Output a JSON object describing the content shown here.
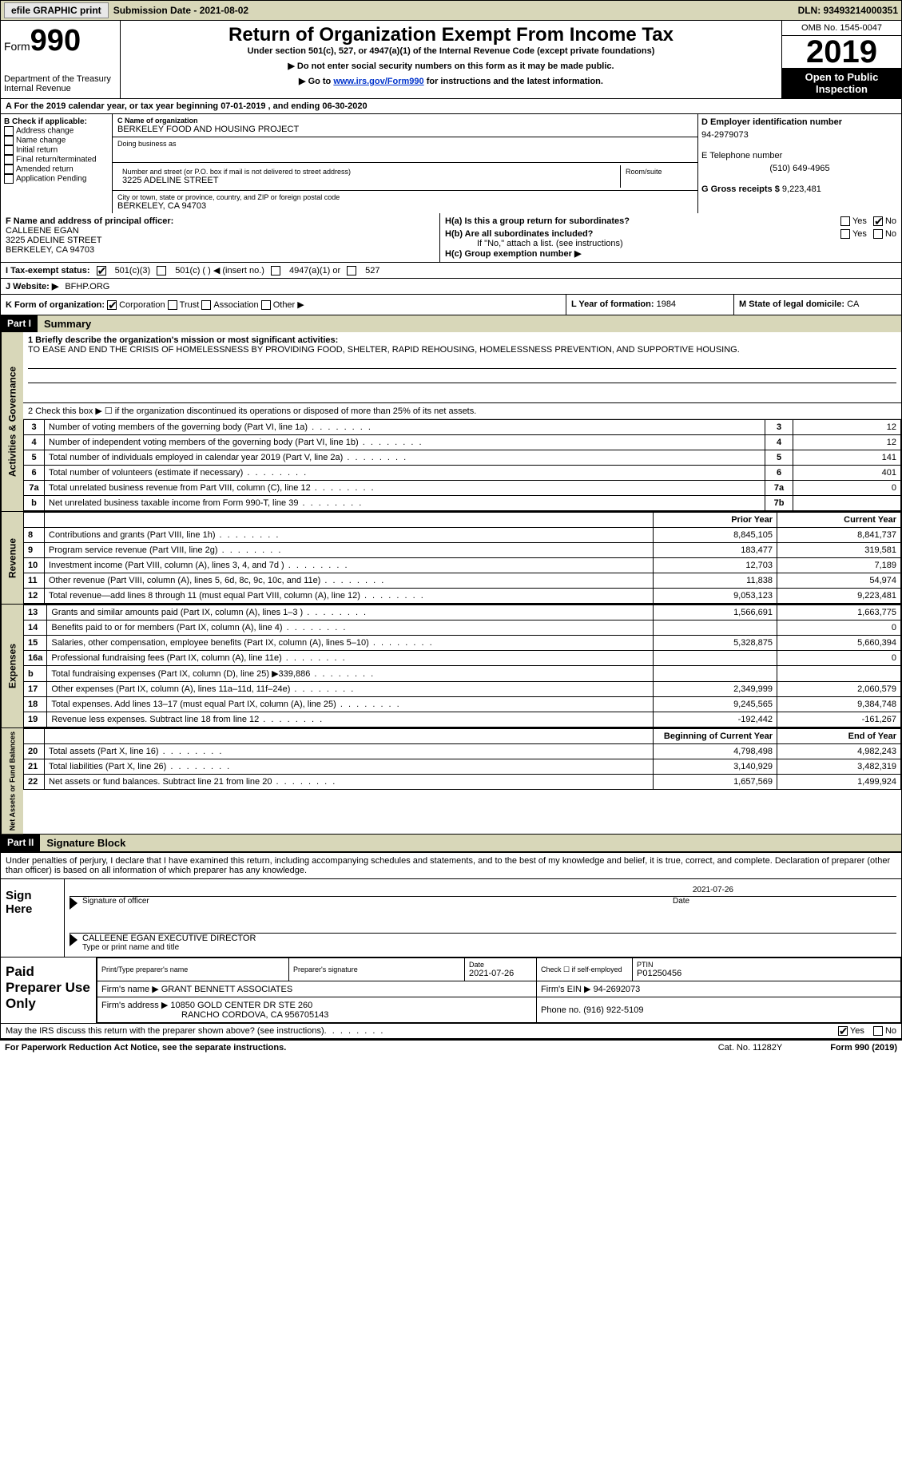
{
  "topbar": {
    "efile": "efile GRAPHIC print",
    "submission": "Submission Date - 2021-08-02",
    "dln": "DLN: 93493214000351"
  },
  "header": {
    "form_word": "Form",
    "form_num": "990",
    "dept": "Department of the Treasury",
    "irs": "Internal Revenue",
    "title": "Return of Organization Exempt From Income Tax",
    "subtitle": "Under section 501(c), 527, or 4947(a)(1) of the Internal Revenue Code (except private foundations)",
    "note1": "▶ Do not enter social security numbers on this form as it may be made public.",
    "note2_pre": "▶ Go to ",
    "note2_link": "www.irs.gov/Form990",
    "note2_post": " for instructions and the latest information.",
    "omb": "OMB No. 1545-0047",
    "year": "2019",
    "open": "Open to Public Inspection"
  },
  "period": "A For the 2019 calendar year, or tax year beginning 07-01-2019   , and ending 06-30-2020",
  "boxB": {
    "title": "B Check if applicable:",
    "items": [
      "Address change",
      "Name change",
      "Initial return",
      "Final return/terminated",
      "Amended return",
      "Application Pending"
    ]
  },
  "boxC": {
    "name_label": "C Name of organization",
    "name": "BERKELEY FOOD AND HOUSING PROJECT",
    "dba_label": "Doing business as",
    "addr_label": "Number and street (or P.O. box if mail is not delivered to street address)",
    "room_label": "Room/suite",
    "addr": "3225 ADELINE STREET",
    "city_label": "City or town, state or province, country, and ZIP or foreign postal code",
    "city": "BERKELEY, CA  94703"
  },
  "boxD": {
    "ein_label": "D Employer identification number",
    "ein": "94-2979073",
    "tel_label": "E Telephone number",
    "tel": "(510) 649-4965",
    "gross_label": "G Gross receipts $",
    "gross": "9,223,481"
  },
  "boxF": {
    "label": "F  Name and address of principal officer:",
    "name": "CALLEENE EGAN",
    "addr1": "3225 ADELINE STREET",
    "addr2": "BERKELEY, CA  94703"
  },
  "boxH": {
    "ha": "H(a)  Is this a group return for subordinates?",
    "hb": "H(b)  Are all subordinates included?",
    "hb_note": "If \"No,\" attach a list. (see instructions)",
    "hc": "H(c)  Group exemption number ▶",
    "yes": "Yes",
    "no": "No"
  },
  "boxI": {
    "label": "I  Tax-exempt status:",
    "o1": "501(c)(3)",
    "o2": "501(c) (  ) ◀ (insert no.)",
    "o3": "4947(a)(1) or",
    "o4": "527"
  },
  "boxJ": {
    "label": "J  Website: ▶",
    "val": "BFHP.ORG"
  },
  "boxK": {
    "label": "K Form of organization:",
    "o1": "Corporation",
    "o2": "Trust",
    "o3": "Association",
    "o4": "Other ▶"
  },
  "boxL": {
    "label": "L Year of formation:",
    "val": "1984"
  },
  "boxM": {
    "label": "M State of legal domicile:",
    "val": "CA"
  },
  "partI": {
    "hdr": "Part I",
    "title": "Summary",
    "q1_label": "1  Briefly describe the organization's mission or most significant activities:",
    "q1_text": "TO EASE AND END THE CRISIS OF HOMELESSNESS BY PROVIDING FOOD, SHELTER, RAPID REHOUSING, HOMELESSNESS PREVENTION, AND SUPPORTIVE HOUSING.",
    "q2": "2   Check this box ▶ ☐  if the organization discontinued its operations or disposed of more than 25% of its net assets.",
    "side_ag": "Activities & Governance",
    "rows_gov": [
      {
        "n": "3",
        "d": "Number of voting members of the governing body (Part VI, line 1a)",
        "b": "3",
        "v": "12"
      },
      {
        "n": "4",
        "d": "Number of independent voting members of the governing body (Part VI, line 1b)",
        "b": "4",
        "v": "12"
      },
      {
        "n": "5",
        "d": "Total number of individuals employed in calendar year 2019 (Part V, line 2a)",
        "b": "5",
        "v": "141"
      },
      {
        "n": "6",
        "d": "Total number of volunteers (estimate if necessary)",
        "b": "6",
        "v": "401"
      },
      {
        "n": "7a",
        "d": "Total unrelated business revenue from Part VIII, column (C), line 12",
        "b": "7a",
        "v": "0"
      },
      {
        "n": "b",
        "d": "Net unrelated business taxable income from Form 990-T, line 39",
        "b": "7b",
        "v": ""
      }
    ],
    "prior_hdr": "Prior Year",
    "curr_hdr": "Current Year",
    "side_rev": "Revenue",
    "rows_rev": [
      {
        "n": "8",
        "d": "Contributions and grants (Part VIII, line 1h)",
        "p": "8,845,105",
        "c": "8,841,737"
      },
      {
        "n": "9",
        "d": "Program service revenue (Part VIII, line 2g)",
        "p": "183,477",
        "c": "319,581"
      },
      {
        "n": "10",
        "d": "Investment income (Part VIII, column (A), lines 3, 4, and 7d )",
        "p": "12,703",
        "c": "7,189"
      },
      {
        "n": "11",
        "d": "Other revenue (Part VIII, column (A), lines 5, 6d, 8c, 9c, 10c, and 11e)",
        "p": "11,838",
        "c": "54,974"
      },
      {
        "n": "12",
        "d": "Total revenue—add lines 8 through 11 (must equal Part VIII, column (A), line 12)",
        "p": "9,053,123",
        "c": "9,223,481"
      }
    ],
    "side_exp": "Expenses",
    "rows_exp": [
      {
        "n": "13",
        "d": "Grants and similar amounts paid (Part IX, column (A), lines 1–3 )",
        "p": "1,566,691",
        "c": "1,663,775"
      },
      {
        "n": "14",
        "d": "Benefits paid to or for members (Part IX, column (A), line 4)",
        "p": "",
        "c": "0"
      },
      {
        "n": "15",
        "d": "Salaries, other compensation, employee benefits (Part IX, column (A), lines 5–10)",
        "p": "5,328,875",
        "c": "5,660,394"
      },
      {
        "n": "16a",
        "d": "Professional fundraising fees (Part IX, column (A), line 11e)",
        "p": "",
        "c": "0"
      },
      {
        "n": "b",
        "d": "Total fundraising expenses (Part IX, column (D), line 25) ▶339,886",
        "p": "shade",
        "c": "shade"
      },
      {
        "n": "17",
        "d": "Other expenses (Part IX, column (A), lines 11a–11d, 11f–24e)",
        "p": "2,349,999",
        "c": "2,060,579"
      },
      {
        "n": "18",
        "d": "Total expenses. Add lines 13–17 (must equal Part IX, column (A), line 25)",
        "p": "9,245,565",
        "c": "9,384,748"
      },
      {
        "n": "19",
        "d": "Revenue less expenses. Subtract line 18 from line 12",
        "p": "-192,442",
        "c": "-161,267"
      }
    ],
    "beg_hdr": "Beginning of Current Year",
    "end_hdr": "End of Year",
    "side_na": "Net Assets or Fund Balances",
    "rows_na": [
      {
        "n": "20",
        "d": "Total assets (Part X, line 16)",
        "p": "4,798,498",
        "c": "4,982,243"
      },
      {
        "n": "21",
        "d": "Total liabilities (Part X, line 26)",
        "p": "3,140,929",
        "c": "3,482,319"
      },
      {
        "n": "22",
        "d": "Net assets or fund balances. Subtract line 21 from line 20",
        "p": "1,657,569",
        "c": "1,499,924"
      }
    ]
  },
  "partII": {
    "hdr": "Part II",
    "title": "Signature Block",
    "penalties": "Under penalties of perjury, I declare that I have examined this return, including accompanying schedules and statements, and to the best of my knowledge and belief, it is true, correct, and complete. Declaration of preparer (other than officer) is based on all information of which preparer has any knowledge.",
    "sign_here": "Sign Here",
    "sig_officer": "Signature of officer",
    "date": "Date",
    "sig_date": "2021-07-26",
    "officer_name": "CALLEENE EGAN  EXECUTIVE DIRECTOR",
    "type_name": "Type or print name and title",
    "paid_prep": "Paid Preparer Use Only",
    "prep_name_lbl": "Print/Type preparer's name",
    "prep_sig_lbl": "Preparer's signature",
    "prep_date_lbl": "Date",
    "prep_date": "2021-07-26",
    "check_self": "Check ☐ if self-employed",
    "ptin_lbl": "PTIN",
    "ptin": "P01250456",
    "firm_name_lbl": "Firm's name     ▶",
    "firm_name": "GRANT BENNETT ASSOCIATES",
    "firm_ein_lbl": "Firm's EIN ▶",
    "firm_ein": "94-2692073",
    "firm_addr_lbl": "Firm's address ▶",
    "firm_addr1": "10850 GOLD CENTER DR STE 260",
    "firm_addr2": "RANCHO CORDOVA, CA  956705143",
    "phone_lbl": "Phone no.",
    "phone": "(916) 922-5109",
    "discuss": "May the IRS discuss this return with the preparer shown above? (see instructions)",
    "yes": "Yes",
    "no": "No"
  },
  "footer": {
    "paperwork": "For Paperwork Reduction Act Notice, see the separate instructions.",
    "cat": "Cat. No. 11282Y",
    "form": "Form 990 (2019)"
  },
  "colors": {
    "tan": "#d8d7b9",
    "link": "#0033cc"
  }
}
